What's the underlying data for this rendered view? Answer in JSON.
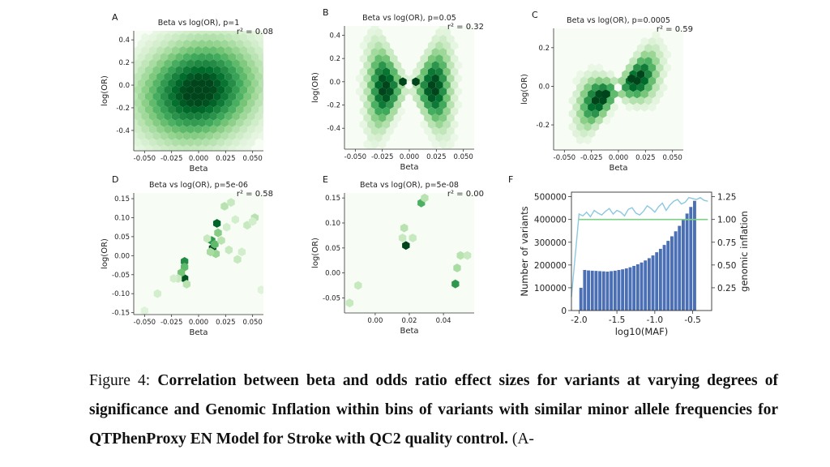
{
  "figure": {
    "panels": [
      {
        "letter": "A",
        "title": "Beta vs log(OR), p=1",
        "r2": "r² = 0.08"
      },
      {
        "letter": "B",
        "title": "Beta vs log(OR), p=0.05",
        "r2": "r² = 0.32"
      },
      {
        "letter": "C",
        "title": "Beta vs log(OR), p=0.0005",
        "r2": "r² = 0.59"
      },
      {
        "letter": "D",
        "title": "Beta vs log(OR), p=5e-06",
        "r2": "r² = 0.58"
      },
      {
        "letter": "E",
        "title": "Beta vs log(OR), p=5e-08",
        "r2": "r² = 0.00"
      },
      {
        "letter": "F",
        "title": "",
        "r2": ""
      }
    ],
    "xlabel_beta": "Beta",
    "ylabel_logor": "log(OR)"
  },
  "chart_data": [
    {
      "type": "heatmap",
      "panel": "A",
      "title": "Beta vs log(OR), p=1",
      "xlabel": "Beta",
      "ylabel": "log(OR)",
      "xlim": [
        -0.06,
        0.06
      ],
      "ylim": [
        -0.58,
        0.48
      ],
      "xticks": [
        "-0.050",
        "-0.025",
        "0.000",
        "0.025",
        "0.050"
      ],
      "yticks": [
        "0.4",
        "0.2",
        "0.0",
        "-0.2",
        "-0.4"
      ],
      "annotation": "r² = 0.08"
    },
    {
      "type": "heatmap",
      "panel": "B",
      "title": "Beta vs log(OR), p=0.05",
      "xlabel": "Beta",
      "ylabel": "log(OR)",
      "xlim": [
        -0.06,
        0.06
      ],
      "ylim": [
        -0.58,
        0.48
      ],
      "xticks": [
        "-0.050",
        "-0.025",
        "0.000",
        "0.025",
        "0.050"
      ],
      "yticks": [
        "0.4",
        "0.2",
        "0.0",
        "-0.2",
        "-0.4"
      ],
      "annotation": "r² = 0.32"
    },
    {
      "type": "heatmap",
      "panel": "C",
      "title": "Beta vs log(OR), p=0.0005",
      "xlabel": "Beta",
      "ylabel": "log(OR)",
      "xlim": [
        -0.06,
        0.06
      ],
      "ylim": [
        -0.33,
        0.3
      ],
      "xticks": [
        "-0.050",
        "-0.025",
        "0.000",
        "0.025",
        "0.050"
      ],
      "yticks": [
        "0.2",
        "0.0",
        "-0.2"
      ],
      "annotation": "r² = 0.59"
    },
    {
      "type": "heatmap",
      "panel": "D",
      "title": "Beta vs log(OR), p=5e-06",
      "xlabel": "Beta",
      "ylabel": "log(OR)",
      "xlim": [
        -0.06,
        0.06
      ],
      "ylim": [
        -0.155,
        0.165
      ],
      "xticks": [
        "-0.050",
        "-0.025",
        "0.000",
        "0.025",
        "0.050"
      ],
      "yticks": [
        "0.15",
        "0.10",
        "0.05",
        "0.00",
        "-0.05",
        "-0.10",
        "-0.15"
      ],
      "annotation": "r² = 0.58"
    },
    {
      "type": "heatmap",
      "panel": "E",
      "title": "Beta vs log(OR), p=5e-08",
      "xlabel": "Beta",
      "ylabel": "log(OR)",
      "xlim": [
        -0.018,
        0.058
      ],
      "ylim": [
        -0.08,
        0.16
      ],
      "xticks": [
        "0.00",
        "0.02",
        "0.04"
      ],
      "yticks": [
        "0.15",
        "0.10",
        "0.05",
        "0.00",
        "-0.05"
      ],
      "annotation": "r² = 0.00"
    },
    {
      "type": "bar",
      "panel": "F",
      "xlabel": "log10(MAF)",
      "ylabel": "Number of variants",
      "y2label": "genomic inflation",
      "xlim": [
        -2.1,
        -0.25
      ],
      "ylim": [
        0,
        520000
      ],
      "y2lim": [
        0,
        1.3
      ],
      "xticks": [
        "-2.0",
        "-1.5",
        "-1.0",
        "-0.5"
      ],
      "yticks": [
        "0",
        "100000",
        "200000",
        "300000",
        "400000",
        "500000"
      ],
      "y2ticks": [
        "0.25",
        "0.50",
        "0.75",
        "1.00",
        "1.25"
      ],
      "bin_start": -2.0,
      "bin_width": 0.05,
      "values": [
        100000,
        178000,
        176000,
        175000,
        174000,
        173000,
        172000,
        171000,
        173000,
        175000,
        178000,
        181000,
        185000,
        190000,
        196000,
        203000,
        211000,
        220000,
        230000,
        242000,
        256000,
        271000,
        288000,
        306000,
        326000,
        348000,
        372000,
        398000,
        426000,
        455000,
        482000
      ],
      "series": [
        {
          "name": "genomic inflation",
          "x": [
            -2.1,
            -2.0,
            -1.95,
            -1.9,
            -1.85,
            -1.8,
            -1.75,
            -1.7,
            -1.65,
            -1.6,
            -1.55,
            -1.5,
            -1.45,
            -1.4,
            -1.35,
            -1.3,
            -1.25,
            -1.2,
            -1.15,
            -1.1,
            -1.05,
            -1.0,
            -0.95,
            -0.9,
            -0.85,
            -0.8,
            -0.75,
            -0.7,
            -0.65,
            -0.6,
            -0.55,
            -0.5,
            -0.45,
            -0.4,
            -0.35,
            -0.3
          ],
          "values": [
            0.15,
            1.06,
            1.04,
            1.08,
            1.03,
            1.1,
            1.07,
            1.05,
            1.09,
            1.12,
            1.06,
            1.1,
            1.08,
            1.04,
            1.11,
            1.13,
            1.07,
            1.05,
            1.09,
            1.15,
            1.12,
            1.08,
            1.14,
            1.18,
            1.1,
            1.16,
            1.2,
            1.22,
            1.17,
            1.19,
            1.24,
            1.23,
            1.22,
            1.24,
            1.21,
            1.2
          ]
        },
        {
          "name": "reference",
          "x": [
            -2.0,
            -0.3
          ],
          "values": [
            1.0,
            1.0
          ]
        }
      ]
    }
  ],
  "caption": {
    "prefix": "Figure 4: ",
    "bold": "Correlation between beta and odds ratio effect sizes for variants at varying degrees of significance and Genomic Inflation within bins of variants with similar minor allele frequencies for QTPhenProxy EN Model for Stroke with QC2 quality control.",
    "rest": " (A-"
  },
  "colors": {
    "green_dark": "#00441b",
    "green_light": "#f7fcf5",
    "bar": "#4a6fb5",
    "line": "#8cc8e0",
    "ref": "#7ccf86"
  }
}
